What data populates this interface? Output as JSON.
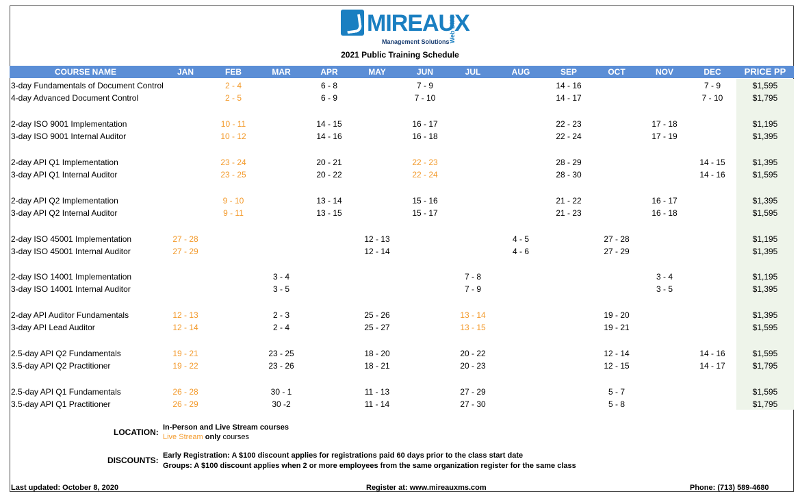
{
  "brand": {
    "name": "MIREAUX",
    "tagline": "Management Solutions",
    "side": "Web DMS"
  },
  "title": "2021 Public Training Schedule",
  "headers": {
    "course": "COURSE NAME",
    "months": [
      "JAN",
      "FEB",
      "MAR",
      "APR",
      "MAY",
      "JUN",
      "JUL",
      "AUG",
      "SEP",
      "OCT",
      "NOV",
      "DEC"
    ],
    "price": "PRICE PP"
  },
  "colors": {
    "header_bg": "#5b8ed6",
    "live_stream": "#f39a2b",
    "price_bg": "#eef4ea"
  },
  "rows": [
    {
      "name": "3-day Fundamentals of Document Control",
      "price": "$1,595",
      "dates": [
        {
          "m": 1,
          "t": "2 - 4",
          "live": true
        },
        {
          "m": 3,
          "t": "6 - 8"
        },
        {
          "m": 5,
          "t": "7 - 9"
        },
        {
          "m": 8,
          "t": "14 - 16"
        },
        {
          "m": 11,
          "t": "7 - 9"
        }
      ]
    },
    {
      "name": "4-day Advanced Document Control",
      "price": "$1,795",
      "dates": [
        {
          "m": 1,
          "t": "2 - 5",
          "live": true
        },
        {
          "m": 3,
          "t": "6 - 9"
        },
        {
          "m": 5,
          "t": "7 - 10"
        },
        {
          "m": 8,
          "t": "14 - 17"
        },
        {
          "m": 11,
          "t": "7 - 10"
        }
      ]
    },
    {
      "name": "2-day ISO 9001 Implementation",
      "price": "$1,195",
      "dates": [
        {
          "m": 1,
          "t": "10 - 11",
          "live": true
        },
        {
          "m": 3,
          "t": "14 - 15"
        },
        {
          "m": 5,
          "t": "16 - 17"
        },
        {
          "m": 8,
          "t": "22 - 23"
        },
        {
          "m": 10,
          "t": "17 - 18"
        }
      ]
    },
    {
      "name": "3-day ISO 9001 Internal Auditor",
      "price": "$1,395",
      "dates": [
        {
          "m": 1,
          "t": "10 - 12",
          "live": true
        },
        {
          "m": 3,
          "t": "14 - 16"
        },
        {
          "m": 5,
          "t": "16 - 18"
        },
        {
          "m": 8,
          "t": "22 - 24"
        },
        {
          "m": 10,
          "t": "17 - 19"
        }
      ]
    },
    {
      "name": "2-day API Q1 Implementation",
      "price": "$1,395",
      "dates": [
        {
          "m": 1,
          "t": "23 - 24",
          "live": true
        },
        {
          "m": 3,
          "t": "20 - 21"
        },
        {
          "m": 5,
          "t": "22 - 23",
          "live": true
        },
        {
          "m": 8,
          "t": "28 - 29"
        },
        {
          "m": 11,
          "t": "14 - 15"
        }
      ]
    },
    {
      "name": "3-day API Q1 Internal Auditor",
      "price": "$1,595",
      "dates": [
        {
          "m": 1,
          "t": "23 - 25",
          "live": true
        },
        {
          "m": 3,
          "t": "20 - 22"
        },
        {
          "m": 5,
          "t": "22 - 24",
          "live": true
        },
        {
          "m": 8,
          "t": "28 - 30"
        },
        {
          "m": 11,
          "t": "14 - 16"
        }
      ]
    },
    {
      "name": "2-day API Q2 Implementation",
      "price": "$1,395",
      "dates": [
        {
          "m": 1,
          "t": "9 - 10",
          "live": true
        },
        {
          "m": 3,
          "t": "13 - 14"
        },
        {
          "m": 5,
          "t": "15 - 16"
        },
        {
          "m": 8,
          "t": "21 - 22"
        },
        {
          "m": 10,
          "t": "16 - 17"
        }
      ]
    },
    {
      "name": "3-day API Q2 Internal Auditor",
      "price": "$1,595",
      "dates": [
        {
          "m": 1,
          "t": "9 - 11",
          "live": true
        },
        {
          "m": 3,
          "t": "13 - 15"
        },
        {
          "m": 5,
          "t": "15 - 17"
        },
        {
          "m": 8,
          "t": "21 - 23"
        },
        {
          "m": 10,
          "t": "16 - 18"
        }
      ]
    },
    {
      "name": "2-day ISO 45001 Implementation",
      "price": "$1,195",
      "dates": [
        {
          "m": 0,
          "t": "27 - 28",
          "live": true
        },
        {
          "m": 4,
          "t": "12 - 13"
        },
        {
          "m": 7,
          "t": "4 - 5"
        },
        {
          "m": 9,
          "t": "27 - 28"
        }
      ]
    },
    {
      "name": "3-day ISO 45001 Internal Auditor",
      "price": "$1,395",
      "dates": [
        {
          "m": 0,
          "t": "27 - 29",
          "live": true
        },
        {
          "m": 4,
          "t": "12 - 14"
        },
        {
          "m": 7,
          "t": "4 - 6"
        },
        {
          "m": 9,
          "t": "27 - 29"
        }
      ]
    },
    {
      "name": "2-day ISO 14001 Implementation",
      "price": "$1,195",
      "dates": [
        {
          "m": 2,
          "t": "3 - 4"
        },
        {
          "m": 6,
          "t": "7 - 8"
        },
        {
          "m": 10,
          "t": "3 - 4"
        }
      ]
    },
    {
      "name": "3-day ISO 14001 Internal Auditor",
      "price": "$1,395",
      "dates": [
        {
          "m": 2,
          "t": "3 - 5"
        },
        {
          "m": 6,
          "t": "7 - 9"
        },
        {
          "m": 10,
          "t": "3 - 5"
        }
      ]
    },
    {
      "name": "2-day API Auditor Fundamentals",
      "price": "$1,395",
      "dates": [
        {
          "m": 0,
          "t": "12 - 13",
          "live": true
        },
        {
          "m": 2,
          "t": "2 - 3"
        },
        {
          "m": 4,
          "t": "25 - 26"
        },
        {
          "m": 6,
          "t": "13 - 14",
          "live": true
        },
        {
          "m": 9,
          "t": "19 - 20"
        }
      ]
    },
    {
      "name": "3-day API  Lead Auditor",
      "price": "$1,595",
      "dates": [
        {
          "m": 0,
          "t": "12 - 14",
          "live": true
        },
        {
          "m": 2,
          "t": "2 - 4"
        },
        {
          "m": 4,
          "t": "25 - 27"
        },
        {
          "m": 6,
          "t": "13 - 15",
          "live": true
        },
        {
          "m": 9,
          "t": "19 - 21"
        }
      ]
    },
    {
      "name": "2.5-day API Q2 Fundamentals",
      "price": "$1,595",
      "dates": [
        {
          "m": 0,
          "t": "19 - 21",
          "live": true
        },
        {
          "m": 2,
          "t": "23 - 25"
        },
        {
          "m": 4,
          "t": "18 - 20"
        },
        {
          "m": 6,
          "t": "20 - 22"
        },
        {
          "m": 9,
          "t": "12 - 14"
        },
        {
          "m": 11,
          "t": "14 - 16"
        }
      ]
    },
    {
      "name": "3.5-day API Q2 Practitioner",
      "price": "$1,795",
      "dates": [
        {
          "m": 0,
          "t": "19 - 22",
          "live": true
        },
        {
          "m": 2,
          "t": "23 - 26"
        },
        {
          "m": 4,
          "t": "18 - 21"
        },
        {
          "m": 6,
          "t": "20 - 23"
        },
        {
          "m": 9,
          "t": "12 - 15"
        },
        {
          "m": 11,
          "t": "14 - 17"
        }
      ]
    },
    {
      "name": "2.5-day API Q1 Fundamentals",
      "price": "$1,595",
      "dates": [
        {
          "m": 0,
          "t": "26 - 28",
          "live": true
        },
        {
          "m": 2,
          "t": "30 - 1"
        },
        {
          "m": 4,
          "t": "11 - 13"
        },
        {
          "m": 6,
          "t": "27 - 29"
        },
        {
          "m": 9,
          "t": "5 - 7"
        }
      ]
    },
    {
      "name": "3.5-day API Q1 Practitioner",
      "price": "$1,795",
      "dates": [
        {
          "m": 0,
          "t": "26 - 29",
          "live": true
        },
        {
          "m": 2,
          "t": "30 -2"
        },
        {
          "m": 4,
          "t": "11 - 14"
        },
        {
          "m": 6,
          "t": "27 - 30"
        },
        {
          "m": 9,
          "t": "5 - 8"
        }
      ]
    }
  ],
  "legend": {
    "label": "LOCATION:",
    "line1": "In-Person and Live Stream courses",
    "line2_orange": "Live Stream",
    "line2_bold": "only",
    "line2_rest": "courses"
  },
  "discounts": {
    "label": "DISCOUNTS:",
    "line1": "Early Registration: A $100 discount applies for registrations paid 60 days prior to the class start date",
    "line2": "Groups: A $100 discount applies when 2 or more employees from the same organization register for the same class"
  },
  "footer": {
    "updated": "Last updated: October 8, 2020",
    "register": "Register at: www.mireauxms.com",
    "phone": "Phone: (713) 589-4680"
  }
}
